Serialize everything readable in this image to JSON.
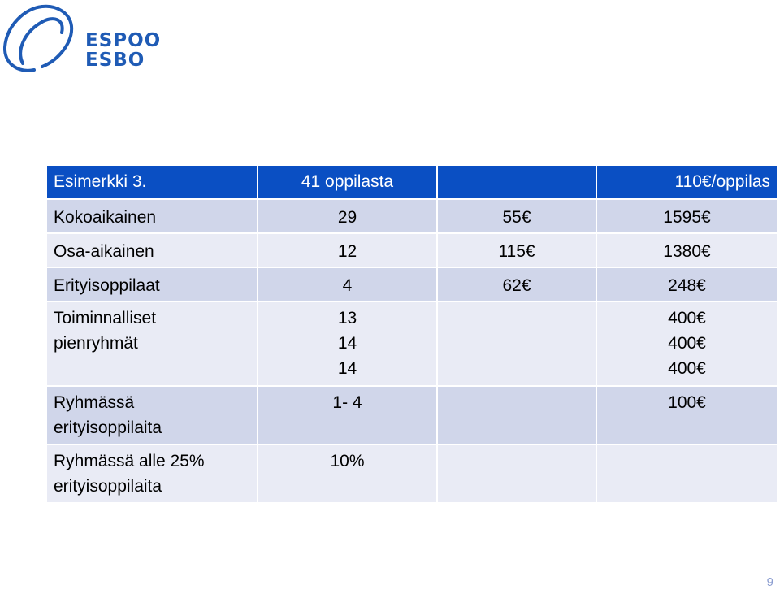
{
  "logo": {
    "line1": "ESPOO",
    "line2": "ESBO"
  },
  "table": {
    "header": {
      "label": "Esimerkki 3.",
      "students": "41 oppilasta",
      "per_student": "110€/oppilas"
    },
    "rows": [
      {
        "label": "Kokoaikainen",
        "count": "29",
        "unit": "55€",
        "total": "1595€"
      },
      {
        "label": "Osa-aikainen",
        "count": "12",
        "unit": "115€",
        "total": "1380€"
      },
      {
        "label": "Erityisoppilaat",
        "count": "4",
        "unit": "62€",
        "total": "248€"
      },
      {
        "label_line1": "Toiminnalliset",
        "label_line2": "pienryhmät",
        "counts": [
          "13",
          "14",
          "14"
        ],
        "unit": "",
        "totals": [
          "400€",
          "400€",
          "400€"
        ]
      },
      {
        "label_line1": "Ryhmässä",
        "label_line2": "erityisoppilaita",
        "count": "1- 4",
        "unit": "",
        "total": "100€"
      },
      {
        "label_line1": "Ryhmässä alle 25%",
        "label_line2": "erityisoppilaita",
        "count": "10%",
        "unit": "",
        "total": ""
      }
    ]
  },
  "page_number": "9",
  "colors": {
    "header_bg": "#0a4fc3",
    "row_dark": "#d0d6ea",
    "row_light": "#e9ebf5",
    "logo_blue": "#1f5bb5"
  }
}
